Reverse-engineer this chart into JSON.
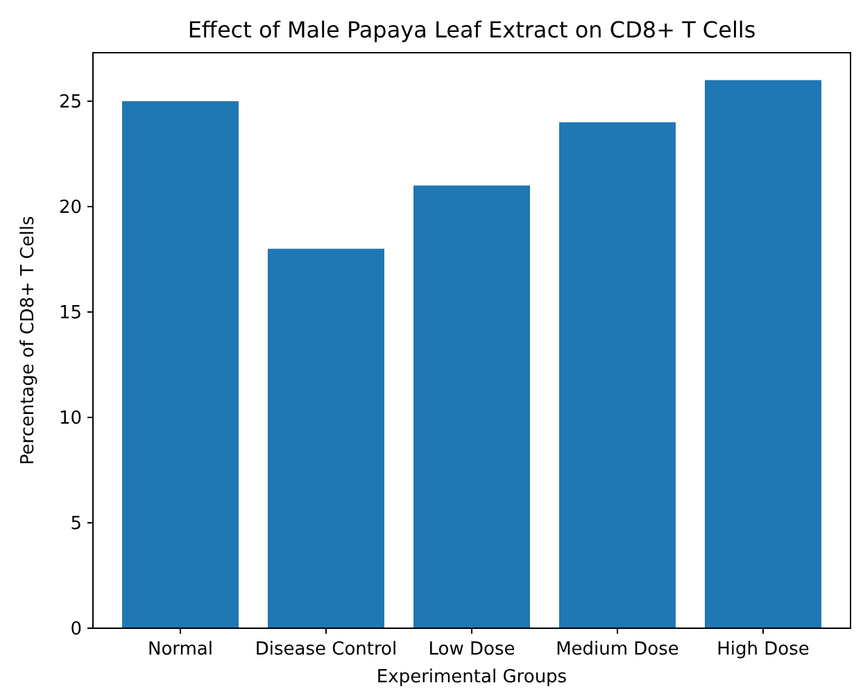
{
  "chart_data": {
    "type": "bar",
    "title": "Effect of Male Papaya Leaf Extract on CD8+ T Cells",
    "xlabel": "Experimental Groups",
    "ylabel": "Percentage of CD8+ T Cells",
    "categories": [
      "Normal",
      "Disease Control",
      "Low Dose",
      "Medium Dose",
      "High Dose"
    ],
    "values": [
      25,
      18,
      21,
      24,
      26
    ],
    "color": "#1f77b4",
    "ylim": [
      0,
      27.3
    ],
    "yticks": [
      0,
      5,
      10,
      15,
      20,
      25
    ],
    "grid": false
  }
}
